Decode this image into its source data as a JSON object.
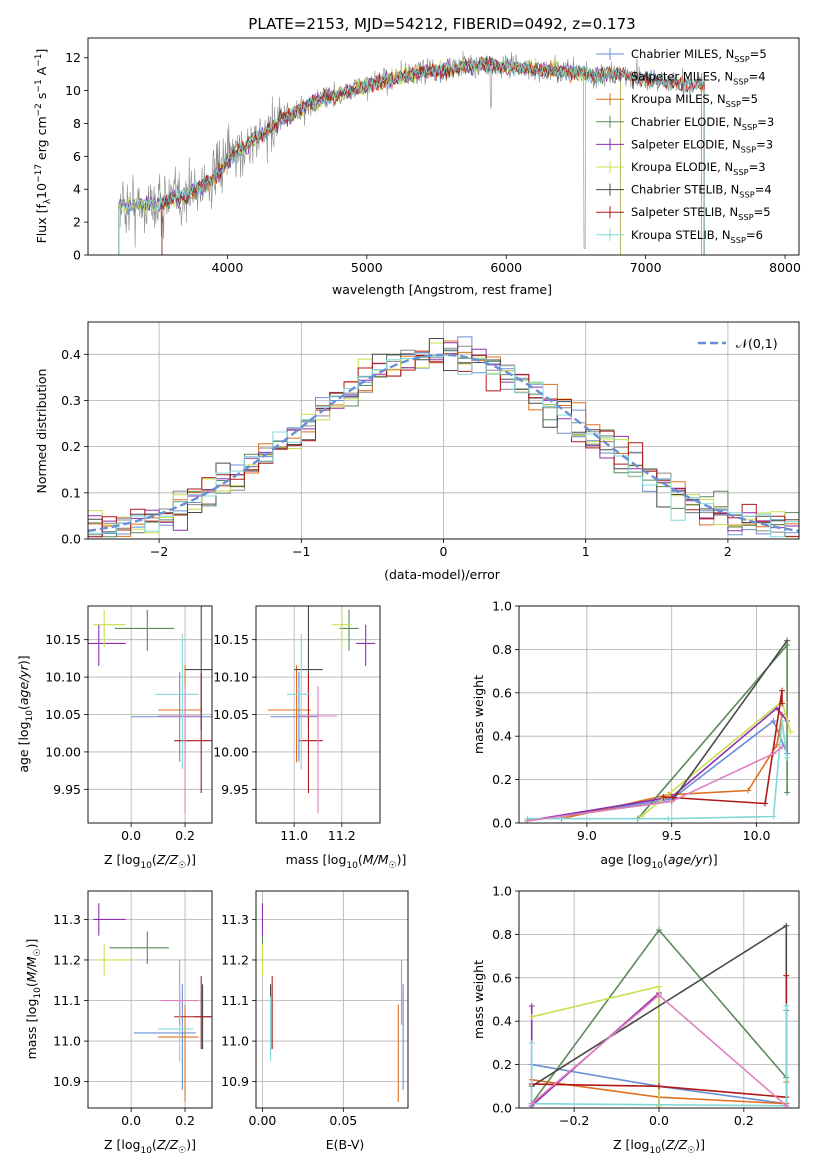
{
  "title": "PLATE=2153, MJD=54212, FIBERID=0492, z=0.173",
  "colors": {
    "Chabrier MILES": "#6a8fd6",
    "Salpeter MILES": "#8a8a8a",
    "Kroupa MILES": "#e07020",
    "Chabrier ELODIE": "#5a8a5a",
    "Salpeter ELODIE": "#8e2faf",
    "Kroupa ELODIE": "#c8e050",
    "Chabrier STELIB": "#4a4a4a",
    "Salpeter STELIB": "#b01818",
    "Kroupa STELIB": "#80d8d8",
    "pink": "#e080c0"
  },
  "chart_data": [
    {
      "type": "line",
      "panel": "spectrum",
      "xlabel": "wavelength [Angstrom, rest frame]",
      "ylabel": "Flux [f_λ 10^-17 erg cm^-2 s^-1 A^-1]",
      "xlim": [
        3000,
        8100
      ],
      "ylim": [
        0,
        13.2
      ],
      "xticks": [
        4000,
        5000,
        6000,
        7000,
        8000
      ],
      "yticks": [
        0,
        2,
        4,
        6,
        8,
        10,
        12
      ],
      "legend_position": "upper-right",
      "legend": [
        {
          "label": "Chabrier MILES, N",
          "n": "5"
        },
        {
          "label": "Salpeter MILES, N",
          "n": "4"
        },
        {
          "label": "Kroupa MILES, N",
          "n": "5"
        },
        {
          "label": "Chabrier ELODIE, N",
          "n": "3"
        },
        {
          "label": "Salpeter ELODIE, N",
          "n": "3"
        },
        {
          "label": "Kroupa ELODIE, N",
          "n": "3"
        },
        {
          "label": "Chabrier STELIB, N",
          "n": "4"
        },
        {
          "label": "Salpeter STELIB, N",
          "n": "5"
        },
        {
          "label": "Kroupa STELIB, N",
          "n": "6"
        }
      ],
      "legend_sub": "SSP",
      "continuum": {
        "x": [
          3250,
          3500,
          3700,
          3900,
          4000,
          4200,
          4400,
          4600,
          4800,
          5000,
          5200,
          5400,
          5600,
          5800,
          6000,
          6200,
          6400,
          6600,
          6800,
          7000,
          7200,
          7400
        ],
        "y": [
          3.0,
          3.1,
          3.6,
          4.6,
          5.8,
          7.0,
          8.3,
          9.2,
          9.8,
          10.3,
          10.8,
          11.1,
          11.3,
          11.6,
          11.5,
          11.3,
          11.2,
          11.0,
          11.0,
          10.7,
          10.5,
          10.3
        ]
      },
      "model_ranges": [
        [
          3220,
          7400
        ],
        [
          3220,
          6820
        ],
        [
          3530,
          7420
        ],
        [
          3220,
          6820
        ],
        [
          3220,
          6820
        ],
        [
          3220,
          6820
        ],
        [
          3530,
          7420
        ],
        [
          3530,
          7420
        ],
        [
          3220,
          7420
        ]
      ]
    },
    {
      "type": "histogram",
      "panel": "residuals",
      "xlabel": "(data-model)/error",
      "ylabel": "Normed distribution",
      "xlim": [
        -2.5,
        2.5
      ],
      "ylim": [
        0,
        0.47
      ],
      "xticks": [
        -2,
        -1,
        0,
        1,
        2
      ],
      "yticks": [
        0,
        0.1,
        0.2,
        0.3,
        0.4
      ],
      "legend": "𝒩(0,1)",
      "legend_position": "upper-right",
      "grid": true,
      "bin_width": 0.1
    },
    {
      "type": "scatter",
      "panel": "age-Z",
      "xlabel": "Z [log10(Z/Z☉)]",
      "ylabel": "age  [log10(age/yr)]",
      "xlim": [
        -0.16,
        0.3
      ],
      "ylim": [
        9.905,
        10.195
      ],
      "xticks": [
        0.0,
        0.2
      ],
      "yticks": [
        9.95,
        10.0,
        10.05,
        10.1,
        10.15
      ],
      "grid": true,
      "points": [
        {
          "s": "Chabrier MILES",
          "x": 0.18,
          "xe": [
            0.18,
            0.18
          ],
          "y": 10.047,
          "ye": [
            0.06,
            0.06
          ]
        },
        {
          "s": "Kroupa MILES",
          "x": 0.2,
          "xe": [
            0.1,
            0.06
          ],
          "y": 10.056,
          "ye": [
            0.07,
            0.06
          ]
        },
        {
          "s": "Chabrier ELODIE",
          "x": 0.06,
          "xe": [
            0.12,
            0.1
          ],
          "y": 10.165,
          "ye": [
            0.03,
            0.025
          ]
        },
        {
          "s": "Salpeter ELODIE",
          "x": -0.12,
          "xe": [
            0.04,
            0.1
          ],
          "y": 10.145,
          "ye": [
            0.03,
            0.025
          ]
        },
        {
          "s": "Kroupa ELODIE",
          "x": -0.1,
          "xe": [
            0.04,
            0.08
          ],
          "y": 10.17,
          "ye": [
            0.03,
            0.02
          ]
        },
        {
          "s": "Chabrier STELIB",
          "x": 0.26,
          "xe": [
            0.06,
            0.04
          ],
          "y": 10.11,
          "ye": [
            0.08,
            0.1
          ]
        },
        {
          "s": "Salpeter STELIB",
          "x": 0.26,
          "xe": [
            0.1,
            0.05
          ],
          "y": 10.015,
          "ye": [
            0.07,
            0.09
          ]
        },
        {
          "s": "Kroupa STELIB",
          "x": 0.19,
          "xe": [
            0.1,
            0.06
          ],
          "y": 10.077,
          "ye": [
            0.1,
            0.08
          ]
        },
        {
          "s": "pink",
          "x": 0.2,
          "xe": [
            0.1,
            0.06
          ],
          "y": 10.048,
          "ye": [
            0.13,
            0.04
          ]
        }
      ]
    },
    {
      "type": "scatter",
      "panel": "age-mass",
      "xlabel": "mass [log10(M/M☉)]",
      "ylabel": "",
      "xlim": [
        10.84,
        11.36
      ],
      "ylim": [
        9.905,
        10.195
      ],
      "xticks": [
        11.0,
        11.2
      ],
      "yticks": [
        9.95,
        10.0,
        10.05,
        10.1,
        10.15
      ],
      "grid": true,
      "points": [
        {
          "s": "Chabrier MILES",
          "x": 11.02,
          "xe": [
            0.12,
            0.08
          ],
          "y": 10.047,
          "ye": [
            0.06,
            0.06
          ]
        },
        {
          "s": "Kroupa MILES",
          "x": 11.01,
          "xe": [
            0.12,
            0.06
          ],
          "y": 10.056,
          "ye": [
            0.07,
            0.06
          ]
        },
        {
          "s": "Chabrier ELODIE",
          "x": 11.23,
          "xe": [
            0.04,
            0.04
          ],
          "y": 10.165,
          "ye": [
            0.03,
            0.025
          ]
        },
        {
          "s": "Salpeter ELODIE",
          "x": 11.3,
          "xe": [
            0.04,
            0.04
          ],
          "y": 10.145,
          "ye": [
            0.03,
            0.025
          ]
        },
        {
          "s": "Kroupa ELODIE",
          "x": 11.2,
          "xe": [
            0.04,
            0.04
          ],
          "y": 10.17,
          "ye": [
            0.03,
            0.02
          ]
        },
        {
          "s": "Chabrier STELIB",
          "x": 11.06,
          "xe": [
            0.06,
            0.06
          ],
          "y": 10.11,
          "ye": [
            0.08,
            0.1
          ]
        },
        {
          "s": "Salpeter STELIB",
          "x": 11.06,
          "xe": [
            0.04,
            0.06
          ],
          "y": 10.015,
          "ye": [
            0.07,
            0.09
          ]
        },
        {
          "s": "Kroupa STELIB",
          "x": 11.03,
          "xe": [
            0.06,
            0.04
          ],
          "y": 10.077,
          "ye": [
            0.1,
            0.08
          ]
        },
        {
          "s": "pink",
          "x": 11.1,
          "xe": [
            0.08,
            0.08
          ],
          "y": 10.048,
          "ye": [
            0.13,
            0.04
          ]
        }
      ]
    },
    {
      "type": "line",
      "panel": "massweight-age",
      "xlabel": "age  [log10(age/yr)]",
      "ylabel": "mass weight",
      "xlim": [
        8.6,
        10.25
      ],
      "ylim": [
        0,
        1.0
      ],
      "xticks": [
        9.0,
        9.5,
        10.0
      ],
      "yticks": [
        0.0,
        0.2,
        0.4,
        0.6,
        0.8,
        1.0
      ],
      "grid": true,
      "series": [
        {
          "s": "Chabrier MILES",
          "x": [
            8.65,
            9.5,
            10.1,
            10.18
          ],
          "y": [
            0.01,
            0.11,
            0.47,
            0.32
          ]
        },
        {
          "s": "Kroupa MILES",
          "x": [
            8.85,
            9.48,
            9.95,
            10.12,
            10.15
          ],
          "y": [
            0.02,
            0.13,
            0.15,
            0.36,
            0.5
          ]
        },
        {
          "s": "Chabrier ELODIE",
          "x": [
            9.3,
            10.18,
            10.18
          ],
          "y": [
            0.02,
            0.82,
            0.14
          ]
        },
        {
          "s": "Salpeter ELODIE",
          "x": [
            8.65,
            9.5,
            10.12,
            10.18
          ],
          "y": [
            0.01,
            0.12,
            0.53,
            0.47
          ]
        },
        {
          "s": "Kroupa ELODIE",
          "x": [
            9.32,
            10.15,
            10.2
          ],
          "y": [
            0.03,
            0.56,
            0.42
          ]
        },
        {
          "s": "Chabrier STELIB",
          "x": [
            8.65,
            9.5,
            10.18
          ],
          "y": [
            0.01,
            0.1,
            0.84
          ]
        },
        {
          "s": "Salpeter STELIB",
          "x": [
            9.45,
            10.05,
            10.15,
            10.15
          ],
          "y": [
            0.12,
            0.09,
            0.61,
            0.55
          ]
        },
        {
          "s": "Kroupa STELIB",
          "x": [
            8.65,
            9.48,
            10.1,
            10.15,
            10.18
          ],
          "y": [
            0.02,
            0.02,
            0.03,
            0.47,
            0.3
          ]
        },
        {
          "s": "pink",
          "x": [
            8.65,
            9.5,
            10.1,
            10.15
          ],
          "y": [
            0.01,
            0.1,
            0.32,
            0.35
          ]
        }
      ]
    },
    {
      "type": "scatter",
      "panel": "mass-Z",
      "xlabel": "Z [log10(Z/Z☉)]",
      "ylabel": "mass [log10(M/M☉)]",
      "xlim": [
        -0.16,
        0.3
      ],
      "ylim": [
        10.835,
        11.37
      ],
      "xticks": [
        0.0,
        0.2
      ],
      "yticks": [
        10.9,
        11.0,
        11.1,
        11.2,
        11.3
      ],
      "grid": true,
      "points": [
        {
          "s": "Chabrier MILES",
          "x": 0.19,
          "xe": [
            0.18,
            0.05
          ],
          "y": 11.02,
          "ye": [
            0.14,
            0.12
          ]
        },
        {
          "s": "Kroupa MILES",
          "x": 0.2,
          "xe": [
            0.1,
            0.05
          ],
          "y": 11.01,
          "ye": [
            0.16,
            0.08
          ]
        },
        {
          "s": "Chabrier ELODIE",
          "x": 0.06,
          "xe": [
            0.14,
            0.08
          ],
          "y": 11.23,
          "ye": [
            0.04,
            0.04
          ]
        },
        {
          "s": "Salpeter ELODIE",
          "x": -0.12,
          "xe": [
            0.02,
            0.1
          ],
          "y": 11.3,
          "ye": [
            0.04,
            0.04
          ]
        },
        {
          "s": "Kroupa ELODIE",
          "x": -0.1,
          "xe": [
            0.04,
            0.1
          ],
          "y": 11.2,
          "ye": [
            0.04,
            0.04
          ]
        },
        {
          "s": "Chabrier STELIB",
          "x": 0.265,
          "xe": [
            0.03,
            0.03
          ],
          "y": 11.06,
          "ye": [
            0.08,
            0.08
          ]
        },
        {
          "s": "Salpeter STELIB",
          "x": 0.26,
          "xe": [
            0.1,
            0.04
          ],
          "y": 11.06,
          "ye": [
            0.08,
            0.1
          ]
        },
        {
          "s": "Kroupa STELIB",
          "x": 0.18,
          "xe": [
            0.08,
            0.05
          ],
          "y": 11.03,
          "ye": [
            0.08,
            0.08
          ]
        },
        {
          "s": "pink",
          "x": 0.18,
          "xe": [
            0.07,
            0.07
          ],
          "y": 11.1,
          "ye": [
            0.06,
            0.1
          ]
        }
      ]
    },
    {
      "type": "scatter",
      "panel": "mass-ebv",
      "xlabel": "E(B-V)",
      "ylabel": "",
      "xlim": [
        -0.004,
        0.09
      ],
      "ylim": [
        10.835,
        11.37
      ],
      "xticks": [
        0.0,
        0.05
      ],
      "yticks": [
        10.9,
        11.0,
        11.1,
        11.2,
        11.3
      ],
      "grid": true,
      "points": [
        {
          "s": "Chabrier MILES",
          "x": 0.087,
          "xe": [
            0,
            0
          ],
          "y": 11.02,
          "ye": [
            0.14,
            0.12
          ]
        },
        {
          "s": "Kroupa MILES",
          "x": 0.084,
          "xe": [
            0,
            0
          ],
          "y": 11.01,
          "ye": [
            0.16,
            0.08
          ]
        },
        {
          "s": "Chabrier ELODIE",
          "x": 0.0,
          "xe": [
            0,
            0
          ],
          "y": 11.23,
          "ye": [
            0.04,
            0.04
          ]
        },
        {
          "s": "Salpeter ELODIE",
          "x": 0.0,
          "xe": [
            0,
            0
          ],
          "y": 11.3,
          "ye": [
            0.04,
            0.04
          ]
        },
        {
          "s": "Kroupa ELODIE",
          "x": 0.0,
          "xe": [
            0,
            0
          ],
          "y": 11.2,
          "ye": [
            0.04,
            0.04
          ]
        },
        {
          "s": "Chabrier STELIB",
          "x": 0.005,
          "xe": [
            0,
            0
          ],
          "y": 11.06,
          "ye": [
            0.08,
            0.08
          ]
        },
        {
          "s": "Salpeter STELIB",
          "x": 0.006,
          "xe": [
            0,
            0
          ],
          "y": 11.06,
          "ye": [
            0.08,
            0.1
          ]
        },
        {
          "s": "Kroupa STELIB",
          "x": 0.005,
          "xe": [
            0,
            0
          ],
          "y": 11.03,
          "ye": [
            0.08,
            0.08
          ]
        },
        {
          "s": "pink",
          "x": 0.086,
          "xe": [
            0,
            0
          ],
          "y": 11.1,
          "ye": [
            0.06,
            0.1
          ]
        }
      ]
    },
    {
      "type": "line",
      "panel": "massweight-Z",
      "xlabel": "Z [log10(Z/Z☉)]",
      "ylabel": "mass weight",
      "xlim": [
        -0.33,
        0.33
      ],
      "ylim": [
        0,
        1.0
      ],
      "xticks": [
        -0.2,
        0.0,
        0.2
      ],
      "yticks": [
        0.0,
        0.2,
        0.4,
        0.6,
        0.8,
        1.0
      ],
      "grid": true,
      "series": [
        {
          "s": "Chabrier MILES",
          "x": [
            -0.3,
            0.0,
            0.3,
            0.3
          ],
          "y": [
            0.2,
            0.1,
            0.02,
            0.45
          ]
        },
        {
          "s": "Kroupa MILES",
          "x": [
            -0.3,
            0.0,
            0.3,
            0.3
          ],
          "y": [
            0.13,
            0.05,
            0.02,
            0.12
          ]
        },
        {
          "s": "Chabrier ELODIE",
          "x": [
            -0.3,
            0.0,
            0.3
          ],
          "y": [
            0.02,
            0.82,
            0.14
          ]
        },
        {
          "s": "Salpeter ELODIE",
          "x": [
            -0.3,
            -0.3,
            0.0,
            0.0
          ],
          "y": [
            0.47,
            0.01,
            0.53,
            0.0
          ]
        },
        {
          "s": "Kroupa ELODIE",
          "x": [
            -0.3,
            0.0,
            0.0
          ],
          "y": [
            0.42,
            0.56,
            0.01
          ]
        },
        {
          "s": "Chabrier STELIB",
          "x": [
            -0.3,
            0.3,
            0.3
          ],
          "y": [
            0.1,
            0.84,
            0.01
          ]
        },
        {
          "s": "Salpeter STELIB",
          "x": [
            -0.3,
            0.0,
            0.3,
            0.3
          ],
          "y": [
            0.11,
            0.1,
            0.05,
            0.61
          ]
        },
        {
          "s": "Kroupa STELIB",
          "x": [
            -0.3,
            -0.3,
            0.3,
            0.3
          ],
          "y": [
            0.3,
            0.02,
            0.01,
            0.47
          ]
        },
        {
          "s": "pink",
          "x": [
            -0.3,
            0.0,
            0.3
          ],
          "y": [
            0.02,
            0.52,
            0.01
          ]
        }
      ]
    }
  ]
}
